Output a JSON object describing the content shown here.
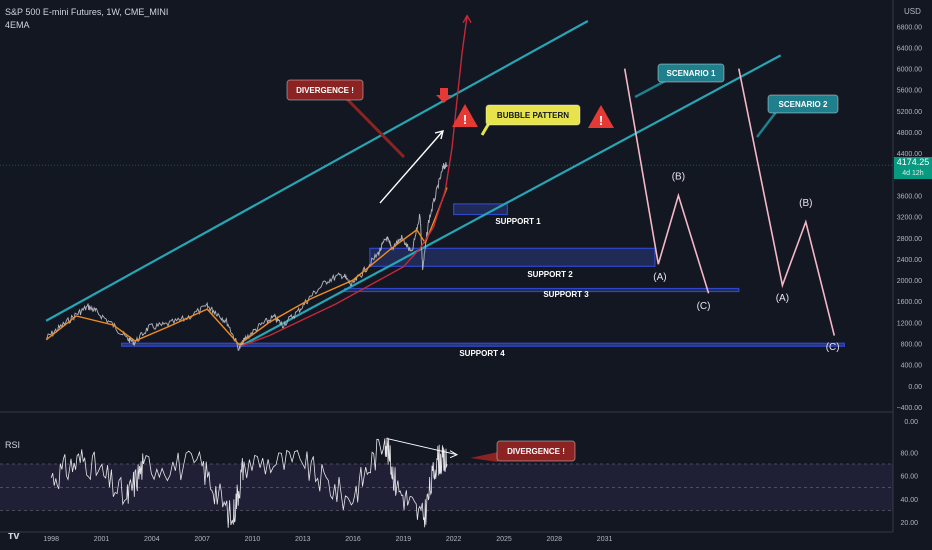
{
  "header": {
    "symbol": "S&P 500 E-mini Futures, 1W, CME_MINI",
    "indicator": "4EMA",
    "currency": "USD"
  },
  "price_tag": {
    "value": "4174.25",
    "countdown": "4d 12h"
  },
  "rsi_label": "RSI",
  "colors": {
    "background": "#131722",
    "price": "#b2b5be",
    "ema_orange": "#f08c1e",
    "ema_red": "#c62839",
    "channel": "#26a6b4",
    "scenario": "#f4b7c6",
    "support_box": "#2a3a80",
    "price_tag": "#089981",
    "divergence_label": "#8c2323",
    "bubble_label": "#e6e34c",
    "scenario_label": "#1f7f8c",
    "warning": "#e53935"
  },
  "chart_data": [
    {
      "type": "line",
      "title": "S&P 500 E-mini Futures, 1W, CME_MINI",
      "y_axis": {
        "unit": "USD",
        "ylim": [
          -400,
          7200
        ],
        "ticks": [
          6800,
          6400,
          6000,
          5600,
          5200,
          4800,
          4400,
          3600,
          3200,
          2800,
          2400,
          2000,
          1600,
          1200,
          800,
          400,
          0,
          -400
        ],
        "tick_labels": [
          "6800.00",
          "6400.00",
          "6000.00",
          "5600.00",
          "5200.00",
          "4800.00",
          "4400.00",
          "3600.00",
          "3200.00",
          "2800.00",
          "2400.00",
          "2000.00",
          "1600.00",
          "1200.00",
          "800.00",
          "400.00",
          "0.00",
          "−400.00"
        ]
      },
      "x_axis": {
        "ticks": [
          1998,
          2001,
          2004,
          2007,
          2010,
          2013,
          2016,
          2019,
          2022,
          2025,
          2028,
          2031
        ],
        "tick_labels": [
          "1998",
          "2001",
          "2004",
          "2007",
          "2010",
          "2013",
          "2016",
          "2019",
          "2022",
          "2025",
          "2028",
          "2031"
        ]
      },
      "price_series": {
        "name": "price",
        "x": [
          1997.7,
          1998.5,
          1999.5,
          2000.2,
          2000.7,
          2001.7,
          2002.5,
          2003.0,
          2003.8,
          2004.8,
          2006.0,
          2007.3,
          2007.8,
          2008.5,
          2009.2,
          2009.6,
          2010.5,
          2011.3,
          2011.8,
          2012.7,
          2013.5,
          2014.5,
          2015.4,
          2015.9,
          2016.6,
          2017.5,
          2018.0,
          2018.3,
          2018.9,
          2019.5,
          2020.0,
          2020.15,
          2020.5,
          2021.0,
          2021.4,
          2021.6
        ],
        "y": [
          900,
          1100,
          1350,
          1500,
          1400,
          1150,
          900,
          820,
          1100,
          1150,
          1270,
          1500,
          1400,
          1200,
          700,
          900,
          1150,
          1300,
          1150,
          1400,
          1700,
          2000,
          2100,
          1900,
          2150,
          2500,
          2800,
          2600,
          2800,
          2500,
          3250,
          2200,
          3100,
          3700,
          4150,
          4174
        ]
      },
      "ema_series": [
        {
          "color": "orange",
          "x": [
            1997.7,
            1999.5,
            2001.7,
            2003.0,
            2005.0,
            2007.3,
            2009.2,
            2011.0,
            2013.5,
            2016.0,
            2018.3,
            2019.8,
            2020.3,
            2021.0,
            2021.6
          ],
          "y": [
            870,
            1320,
            1150,
            850,
            1120,
            1450,
            780,
            1200,
            1650,
            2000,
            2600,
            2950,
            2700,
            3250,
            3750
          ]
        },
        {
          "color": "red",
          "x": [
            2009.3,
            2011.0,
            2013.0,
            2015.0,
            2017.0,
            2019.0,
            2020.0,
            2020.8,
            2021.5,
            2021.9,
            2022.2,
            2022.5,
            2022.8
          ],
          "y": [
            750,
            950,
            1250,
            1550,
            1900,
            2250,
            2600,
            3000,
            3700,
            4500,
            5400,
            6300,
            7000
          ]
        }
      ],
      "channel_lines": [
        {
          "x": [
            1997.7,
            2030.0
          ],
          "y": [
            1230,
            6900
          ]
        },
        {
          "x": [
            2009.3,
            2041.5
          ],
          "y": [
            750,
            6250
          ]
        }
      ],
      "supports": [
        {
          "label": "SUPPORT 1",
          "x": [
            2022.0,
            2025.2
          ],
          "y": [
            3240,
            3440
          ]
        },
        {
          "label": "SUPPORT 2",
          "x": [
            2017.0,
            2034.0
          ],
          "y": [
            2260,
            2600
          ]
        },
        {
          "label": "SUPPORT 3",
          "x": [
            2015.5,
            2039.0
          ],
          "y": [
            1810,
            1840
          ]
        },
        {
          "label": "SUPPORT 4",
          "x": [
            2002.2,
            2045.3
          ],
          "y": [
            755,
            805
          ]
        }
      ],
      "scenarios": [
        {
          "label": "SCENARIO 1",
          "path": {
            "x": [
              2032.2,
              2034.2,
              2035.4,
              2037.2
            ],
            "y": [
              6000,
              2300,
              3600,
              1750
            ]
          },
          "waves": [
            {
              "label": "(A)",
              "x": 2034.3,
              "y": 2000
            },
            {
              "label": "(B)",
              "x": 2035.4,
              "y": 3900
            },
            {
              "label": "(C)",
              "x": 2036.9,
              "y": 1450
            }
          ]
        },
        {
          "label": "SCENARIO 2",
          "path": {
            "x": [
              2039.0,
              2041.6,
              2043.0,
              2044.7
            ],
            "y": [
              6000,
              1900,
              3100,
              950
            ]
          },
          "waves": [
            {
              "label": "(A)",
              "x": 2041.6,
              "y": 1600
            },
            {
              "label": "(B)",
              "x": 2043.0,
              "y": 3400
            },
            {
              "label": "(C)",
              "x": 2044.6,
              "y": 680
            }
          ]
        }
      ],
      "annotations": {
        "divergence": "DIVERGENCE !",
        "bubble": "BUBBLE PATTERN"
      }
    },
    {
      "type": "line",
      "title": "RSI",
      "ylim": [
        10,
        100
      ],
      "tick_labels": [
        "0.00",
        "80.00",
        "60.00",
        "40.00",
        "20.00"
      ],
      "ticks": [
        0,
        80,
        60,
        40,
        20
      ],
      "band": [
        30,
        70
      ],
      "midline": 50,
      "x_range": [
        1997.7,
        2021.6
      ],
      "key_points": {
        "x": [
          1998.0,
          2000.0,
          2002.5,
          2003.5,
          2007.0,
          2008.8,
          2009.5,
          2013.0,
          2015.8,
          2017.9,
          2018.6,
          2020.2,
          2021.0,
          2021.6
        ],
        "y": [
          58,
          75,
          40,
          70,
          68,
          22,
          72,
          70,
          38,
          92,
          50,
          22,
          75,
          70
        ]
      },
      "divergence_line": {
        "x": [
          2018.0,
          2022.2
        ],
        "y": [
          92,
          78
        ]
      },
      "annotation": "DIVERGENCE !"
    }
  ]
}
